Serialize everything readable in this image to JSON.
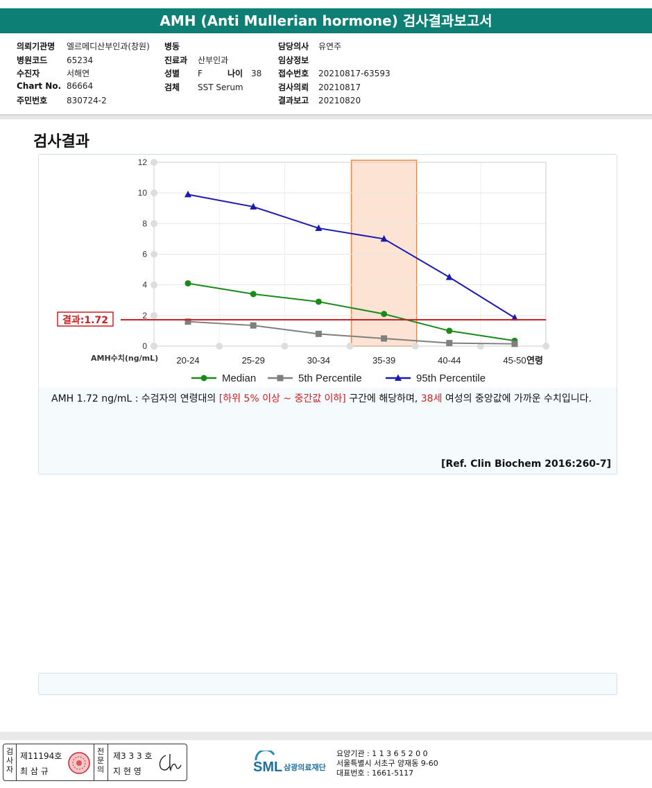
{
  "report": {
    "title": "AMH (Anti Mullerian hormone) 검사결과보고서"
  },
  "info": {
    "col1": [
      {
        "label": "의뢰기관명",
        "value": "엘르메디산부인과(창원)"
      },
      {
        "label": "병원코드",
        "value": "65234"
      },
      {
        "label": "수진자",
        "value": "서해연"
      },
      {
        "label": "Chart No.",
        "value": "86664"
      },
      {
        "label": "주민번호",
        "value": "830724-2"
      }
    ],
    "col2": [
      {
        "label": "병동",
        "value": ""
      },
      {
        "label": "진료과",
        "value": "산부인과"
      },
      {
        "label": "성별",
        "value": "F"
      },
      {
        "label": "검체",
        "value": "SST Serum"
      }
    ],
    "age": {
      "label": "나이",
      "value": "38"
    },
    "col3": [
      {
        "label": "담당의사",
        "value": "유연주"
      },
      {
        "label": "임상정보",
        "value": ""
      },
      {
        "label": "접수번호",
        "value": "20210817-63593"
      },
      {
        "label": "검사의뢰",
        "value": "20210817"
      },
      {
        "label": "결과보고",
        "value": "20210820"
      }
    ]
  },
  "section": {
    "title": "검사결과"
  },
  "chart_data": {
    "type": "line",
    "categories": [
      "20-24",
      "25-29",
      "30-34",
      "35-39",
      "40-44",
      "45-50"
    ],
    "xlabel": "연령",
    "ylabel": "AMH수치(ng/mL)",
    "ylim": [
      0,
      12
    ],
    "yticks": [
      "0",
      "2",
      "4",
      "6",
      "8",
      "10",
      "12"
    ],
    "grid": true,
    "legend_placement": "bottom",
    "highlight_category": "35-39",
    "result_line": {
      "value": 1.72,
      "label": "결과:1.72",
      "color": "#cc1f1f"
    },
    "series": [
      {
        "name": "Median",
        "color": "#1a8a1a",
        "marker": "circle",
        "values": [
          4.1,
          3.4,
          2.9,
          2.1,
          1.0,
          0.35
        ]
      },
      {
        "name": "5th Percentile",
        "color": "#7f7f7f",
        "marker": "square",
        "values": [
          1.6,
          1.35,
          0.8,
          0.5,
          0.2,
          0.15
        ]
      },
      {
        "name": "95th Percentile",
        "color": "#1a1ab0",
        "marker": "triangle",
        "values": [
          9.9,
          9.1,
          7.7,
          7.0,
          4.5,
          1.85
        ]
      }
    ]
  },
  "description": {
    "part1": "AMH  1.72 ng/mL : 수검자의 연령대의 ",
    "highlight1": "[하위 5% 이상 ~ 중간값 이하]",
    "part2": "  구간에 해당하며, ",
    "highlight2": "38세",
    "part3": " 여성의 중앙값에 가까운 수치입니다."
  },
  "reference": "[Ref. Clin Biochem 2016:260-7]",
  "signature": {
    "examiner_label": "검사자",
    "examiner_no": "제11194호",
    "examiner_name": "최 삼 규",
    "specialist_label": "전문의",
    "specialist_no": "제3 3 3 호",
    "specialist_name": "지 현 영"
  },
  "org": {
    "logo_text": "SML",
    "name": "삼광의료재단",
    "code_line": "요양기관 : 1 1 3 6 5 2 0 0",
    "address_line": "서울특별시 서초구 양재동 9-60",
    "phone_line": "대표번호 : 1661-5117"
  }
}
